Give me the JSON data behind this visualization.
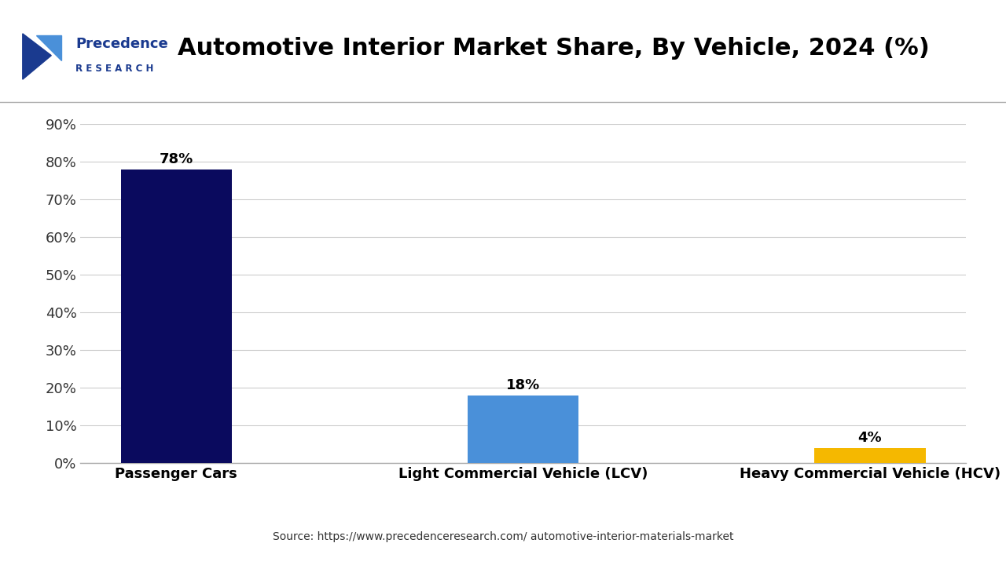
{
  "title": "Automotive Interior Market Share, By Vehicle, 2024 (%)",
  "categories": [
    "Passenger Cars",
    "Light Commercial Vehicle (LCV)",
    "Heavy Commercial Vehicle (HCV)"
  ],
  "values": [
    78,
    18,
    4
  ],
  "bar_colors": [
    "#0a0a5e",
    "#4a90d9",
    "#f5b800"
  ],
  "value_labels": [
    "78%",
    "18%",
    "4%"
  ],
  "ylim": [
    0,
    90
  ],
  "yticks": [
    0,
    10,
    20,
    30,
    40,
    50,
    60,
    70,
    80,
    90
  ],
  "ytick_labels": [
    "0%",
    "10%",
    "20%",
    "30%",
    "40%",
    "50%",
    "60%",
    "70%",
    "80%",
    "90%"
  ],
  "background_color": "#ffffff",
  "source_text": "Source: https://www.precedenceresearch.com/ automotive-interior-materials-market",
  "title_fontsize": 22,
  "label_fontsize": 13,
  "tick_fontsize": 13,
  "bar_width": 0.32,
  "grid_color": "#cccccc",
  "logo_color": "#1a3a8f",
  "logo_light_color": "#4a90d9"
}
